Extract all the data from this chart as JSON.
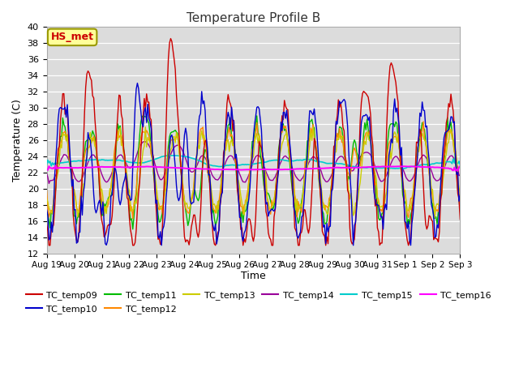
{
  "title": "Temperature Profile B",
  "xlabel": "Time",
  "ylabel": "Temperature (C)",
  "ylim": [
    12,
    40
  ],
  "yticks": [
    12,
    14,
    16,
    18,
    20,
    22,
    24,
    26,
    28,
    30,
    32,
    34,
    36,
    38,
    40
  ],
  "annotation_text": "HS_met",
  "background_color": "#dcdcdc",
  "grid_color": "#ffffff",
  "series_colors": {
    "TC_temp09": "#cc0000",
    "TC_temp10": "#0000cc",
    "TC_temp11": "#00bb00",
    "TC_temp12": "#ff8800",
    "TC_temp13": "#cccc00",
    "TC_temp14": "#990099",
    "TC_temp15": "#00cccc",
    "TC_temp16": "#ff00ff"
  },
  "x_labels": [
    "Aug 19",
    "Aug 20",
    "Aug 21",
    "Aug 22",
    "Aug 23",
    "Aug 24",
    "Aug 25",
    "Aug 26",
    "Aug 27",
    "Aug 28",
    "Aug 29",
    "Aug 30",
    "Aug 31",
    "Sep 1",
    "Sep 2",
    "Sep 3"
  ]
}
